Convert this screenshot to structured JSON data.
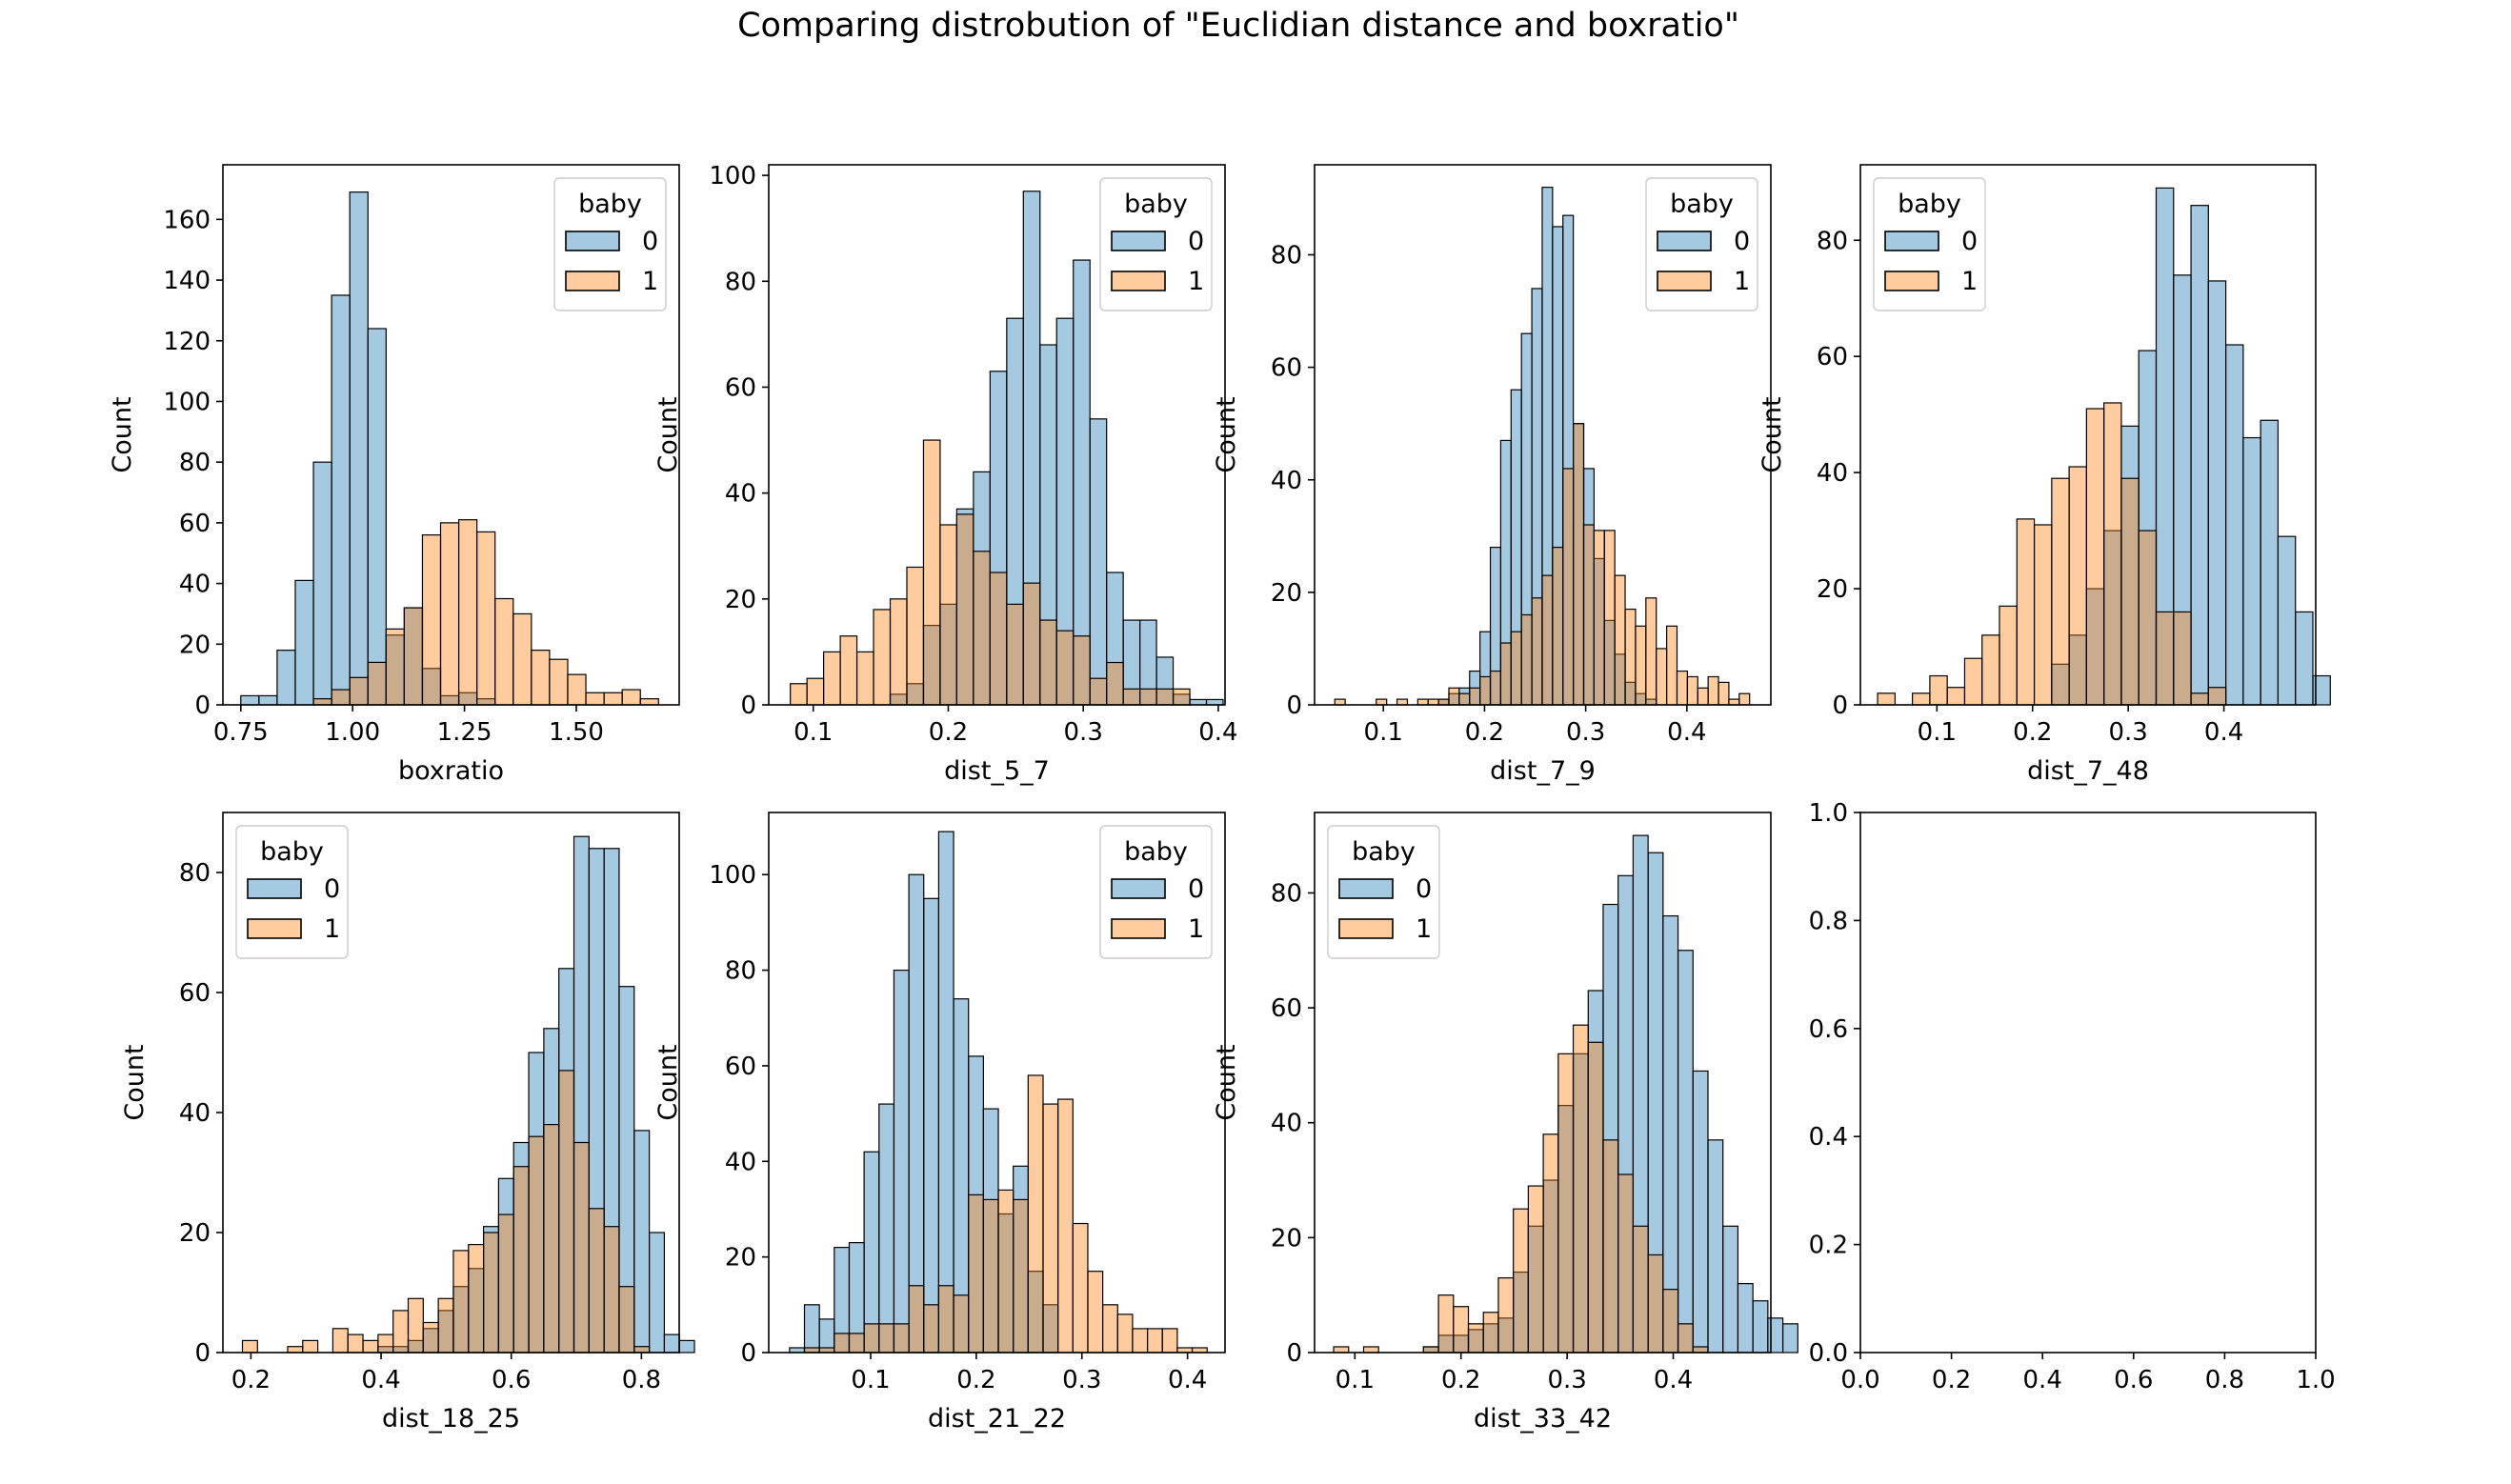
{
  "figure": {
    "title": "Comparing distrobution of \"Euclidian distance and boxratio\""
  },
  "colors": {
    "series_0": "#1f77b4",
    "series_1": "#ff7f0e",
    "overlap": "#899ba3",
    "edge": "#000000"
  },
  "chart_data": [
    {
      "type": "histogram",
      "xlabel": "boxratio",
      "ylabel": "Count",
      "xlim": [
        0.71,
        1.73
      ],
      "ylim": [
        0,
        178
      ],
      "xticks": [
        0.75,
        1.0,
        1.25,
        1.5
      ],
      "xtick_labels": [
        "0.75",
        "1.00",
        "1.25",
        "1.50"
      ],
      "yticks": [
        0,
        20,
        40,
        60,
        80,
        100,
        120,
        140,
        160
      ],
      "legend": {
        "title": "baby",
        "entries": [
          "0",
          "1"
        ],
        "position": "top-right"
      },
      "bin_start": 0.75,
      "bin_width": 0.0406,
      "series": [
        {
          "name": "0",
          "values": [
            3,
            3,
            18,
            41,
            80,
            135,
            169,
            124,
            23,
            32,
            12,
            3,
            4,
            2,
            0,
            0,
            0,
            0,
            0,
            0,
            0,
            0,
            0,
            0
          ]
        },
        {
          "name": "1",
          "values": [
            0,
            0,
            0,
            0,
            2,
            5,
            9,
            14,
            25,
            32,
            56,
            60,
            61,
            57,
            35,
            30,
            18,
            15,
            10,
            4,
            4,
            5,
            2,
            0
          ]
        }
      ]
    },
    {
      "type": "histogram",
      "xlabel": "dist_5_7",
      "ylabel": "Count",
      "xlim": [
        0.067,
        0.405
      ],
      "ylim": [
        0,
        102
      ],
      "xticks": [
        0.1,
        0.2,
        0.3,
        0.4
      ],
      "xtick_labels": [
        "0.1",
        "0.2",
        "0.3",
        "0.4"
      ],
      "yticks": [
        0,
        20,
        40,
        60,
        80,
        100
      ],
      "legend": {
        "title": "baby",
        "entries": [
          "0",
          "1"
        ],
        "position": "top-right"
      },
      "bin_start": 0.083,
      "bin_width": 0.01233,
      "series": [
        {
          "name": "0",
          "values": [
            0,
            0,
            0,
            0,
            0,
            0,
            2,
            4,
            15,
            19,
            37,
            44,
            63,
            73,
            97,
            68,
            73,
            84,
            54,
            25,
            16,
            16,
            9,
            2,
            1,
            1
          ]
        },
        {
          "name": "1",
          "values": [
            4,
            5,
            10,
            13,
            10,
            18,
            20,
            26,
            50,
            34,
            36,
            29,
            25,
            19,
            23,
            16,
            14,
            13,
            5,
            8,
            3,
            3,
            3,
            3,
            0,
            0
          ]
        }
      ]
    },
    {
      "type": "histogram",
      "xlabel": "dist_7_9",
      "ylabel": "Count",
      "xlim": [
        0.032,
        0.483
      ],
      "ylim": [
        0,
        96
      ],
      "xticks": [
        0.1,
        0.2,
        0.3,
        0.4
      ],
      "xtick_labels": [
        "0.1",
        "0.2",
        "0.3",
        "0.4"
      ],
      "yticks": [
        0,
        20,
        40,
        60,
        80
      ],
      "legend": {
        "title": "baby",
        "entries": [
          "0",
          "1"
        ],
        "position": "top-right"
      },
      "bin_start": 0.052,
      "bin_width": 0.01025,
      "series": [
        {
          "name": "0",
          "values": [
            0,
            0,
            0,
            0,
            0,
            0,
            0,
            0,
            0,
            0,
            1,
            2,
            3,
            6,
            13,
            28,
            47,
            56,
            66,
            74,
            92,
            85,
            87,
            50,
            42,
            26,
            15,
            9,
            4,
            2,
            1,
            0,
            0,
            0,
            0,
            0,
            0,
            0,
            0,
            0
          ]
        },
        {
          "name": "1",
          "values": [
            1,
            0,
            0,
            0,
            1,
            0,
            1,
            0,
            1,
            1,
            1,
            3,
            2,
            3,
            5,
            6,
            11,
            13,
            16,
            19,
            23,
            28,
            42,
            50,
            32,
            31,
            31,
            23,
            17,
            14,
            19,
            10,
            14,
            6,
            5,
            3,
            5,
            4,
            1,
            2
          ]
        }
      ]
    },
    {
      "type": "histogram",
      "xlabel": "dist_7_48",
      "ylabel": "Count",
      "xlim": [
        0.02,
        0.496
      ],
      "ylim": [
        0,
        93
      ],
      "xticks": [
        0.1,
        0.2,
        0.3,
        0.4
      ],
      "xtick_labels": [
        "0.1",
        "0.2",
        "0.3",
        "0.4"
      ],
      "yticks": [
        0,
        20,
        40,
        60,
        80
      ],
      "legend": {
        "title": "baby",
        "entries": [
          "0",
          "1"
        ],
        "position": "top-left"
      },
      "bin_start": 0.038,
      "bin_width": 0.0182,
      "series": [
        {
          "name": "0",
          "values": [
            0,
            0,
            0,
            0,
            0,
            0,
            0,
            0,
            0,
            0,
            7,
            12,
            20,
            30,
            48,
            61,
            89,
            74,
            86,
            73,
            62,
            46,
            49,
            29,
            16,
            5
          ]
        },
        {
          "name": "1",
          "values": [
            2,
            0,
            2,
            5,
            3,
            8,
            12,
            17,
            32,
            31,
            39,
            41,
            51,
            52,
            39,
            30,
            16,
            16,
            2,
            3,
            0,
            0,
            0,
            0,
            0,
            0
          ]
        }
      ]
    },
    {
      "type": "histogram",
      "xlabel": "dist_18_25",
      "ylabel": "Count",
      "xlim": [
        0.157,
        0.858
      ],
      "ylim": [
        0,
        90
      ],
      "xticks": [
        0.2,
        0.4,
        0.6,
        0.8
      ],
      "xtick_labels": [
        "0.2",
        "0.4",
        "0.6",
        "0.8"
      ],
      "yticks": [
        0,
        20,
        40,
        60,
        80
      ],
      "legend": {
        "title": "baby",
        "entries": [
          "0",
          "1"
        ],
        "position": "top-left"
      },
      "bin_start": 0.187,
      "bin_width": 0.02315,
      "series": [
        {
          "name": "0",
          "values": [
            0,
            0,
            0,
            0,
            0,
            0,
            0,
            0,
            0,
            1,
            1,
            2,
            4,
            7,
            11,
            14,
            21,
            29,
            35,
            50,
            54,
            64,
            86,
            84,
            84,
            61,
            37,
            20,
            3,
            2
          ]
        },
        {
          "name": "1",
          "values": [
            2,
            0,
            0,
            1,
            2,
            0,
            4,
            3,
            2,
            3,
            7,
            9,
            5,
            9,
            17,
            18,
            20,
            23,
            31,
            36,
            38,
            47,
            35,
            24,
            21,
            11,
            1,
            0,
            0,
            0
          ]
        }
      ]
    },
    {
      "type": "histogram",
      "xlabel": "dist_21_22",
      "ylabel": "Count",
      "xlim": [
        0.0035,
        0.4355
      ],
      "ylim": [
        0,
        113
      ],
      "xticks": [
        0.1,
        0.2,
        0.3,
        0.4
      ],
      "xtick_labels": [
        "0.1",
        "0.2",
        "0.3",
        "0.4"
      ],
      "yticks": [
        0,
        20,
        40,
        60,
        80,
        100
      ],
      "legend": {
        "title": "baby",
        "entries": [
          "0",
          "1"
        ],
        "position": "top-right"
      },
      "bin_start": 0.0232,
      "bin_width": 0.01412,
      "series": [
        {
          "name": "0",
          "values": [
            1,
            10,
            7,
            22,
            23,
            42,
            52,
            80,
            100,
            95,
            109,
            74,
            62,
            51,
            29,
            39,
            17,
            10,
            0,
            0,
            0,
            0,
            0,
            0,
            0,
            0,
            0,
            0
          ]
        },
        {
          "name": "1",
          "values": [
            0,
            1,
            1,
            4,
            4,
            6,
            6,
            6,
            14,
            10,
            14,
            12,
            33,
            32,
            34,
            32,
            58,
            52,
            53,
            27,
            17,
            10,
            8,
            5,
            5,
            5,
            1,
            1
          ]
        }
      ]
    },
    {
      "type": "histogram",
      "xlabel": "dist_33_42",
      "ylabel": "Count",
      "xlim": [
        0.062,
        0.492
      ],
      "ylim": [
        0,
        94
      ],
      "xticks": [
        0.1,
        0.2,
        0.3,
        0.4
      ],
      "xtick_labels": [
        "0.1",
        "0.2",
        "0.3",
        "0.4"
      ],
      "yticks": [
        0,
        20,
        40,
        60,
        80
      ],
      "legend": {
        "title": "baby",
        "entries": [
          "0",
          "1"
        ],
        "position": "top-left"
      },
      "bin_start": 0.08,
      "bin_width": 0.01411,
      "series": [
        {
          "name": "0",
          "values": [
            0,
            0,
            0,
            0,
            0,
            0,
            1,
            3,
            3,
            4,
            5,
            6,
            14,
            22,
            30,
            43,
            52,
            63,
            78,
            83,
            90,
            87,
            76,
            70,
            49,
            37,
            22,
            12,
            9,
            6,
            5
          ]
        },
        {
          "name": "1",
          "values": [
            1,
            0,
            1,
            0,
            0,
            0,
            1,
            10,
            8,
            5,
            7,
            13,
            25,
            29,
            38,
            52,
            57,
            54,
            37,
            31,
            22,
            17,
            11,
            5,
            1,
            0,
            0,
            0,
            0,
            0,
            0
          ]
        }
      ]
    },
    {
      "type": "empty",
      "xlim": [
        0,
        1
      ],
      "ylim": [
        0,
        1
      ],
      "xticks": [
        0.0,
        0.2,
        0.4,
        0.6,
        0.8,
        1.0
      ],
      "xtick_labels": [
        "0.0",
        "0.2",
        "0.4",
        "0.6",
        "0.8",
        "1.0"
      ],
      "yticks": [
        0.0,
        0.2,
        0.4,
        0.6,
        0.8,
        1.0
      ],
      "ytick_labels": [
        "0.0",
        "0.2",
        "0.4",
        "0.6",
        "0.8",
        "1.0"
      ]
    }
  ]
}
